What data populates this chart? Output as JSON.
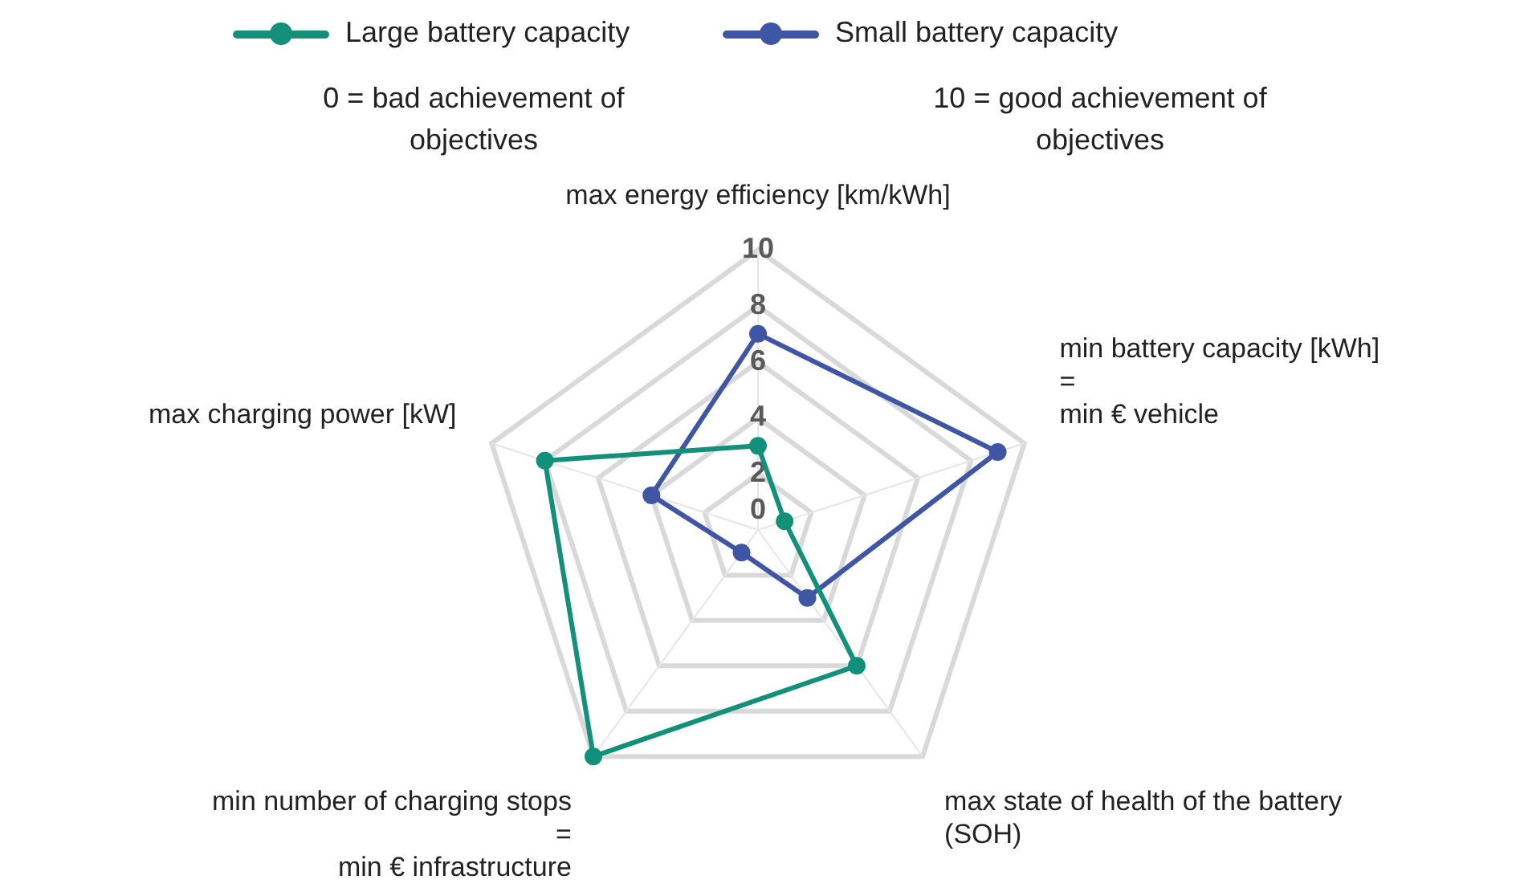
{
  "chart_data": {
    "type": "radar",
    "categories": [
      "max energy efficiency [km/kWh]",
      "min battery capacity [kWh]\n=\nmin € vehicle",
      "max state of health of the battery\n(SOH)",
      "min number of charging stops\n=\nmin € infrastructure",
      "max charging power [kW]"
    ],
    "series": [
      {
        "name": "Large battery capacity",
        "color": "#12907a",
        "values": [
          3,
          1,
          6,
          10,
          8
        ]
      },
      {
        "name": "Small battery capacity",
        "color": "#3f56a5",
        "values": [
          7,
          9,
          3,
          1,
          4
        ]
      }
    ],
    "ylim": [
      0,
      10
    ],
    "yticks": [
      0,
      2,
      4,
      6,
      8,
      10
    ],
    "grid": true,
    "legend": "top",
    "marker": "circle",
    "annotations": [
      "0 = bad achievement of objectives",
      "10 = good achievement of objectives"
    ]
  }
}
